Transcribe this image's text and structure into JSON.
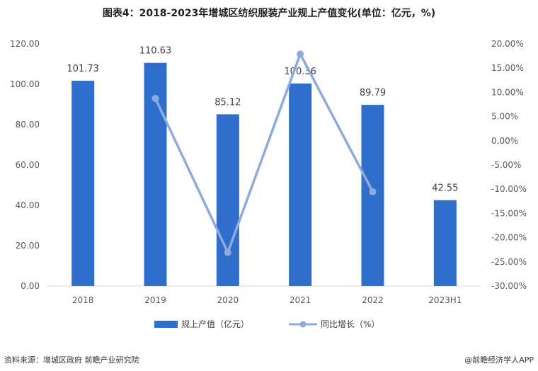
{
  "title": "图表4：2018-2023年增城区纺织服装产业规上产值变化(单位：亿元，%)",
  "source": "资料来源：增城区政府 前瞻产业研究院",
  "credit": "@前瞻经济学人APP",
  "colors": {
    "bar": "#2f6fcb",
    "line": "#8faadc",
    "text": "#595959"
  },
  "chart_data": {
    "type": "bar",
    "categories": [
      "2018",
      "2019",
      "2020",
      "2021",
      "2022",
      "2023H1"
    ],
    "series": [
      {
        "name": "规上产值（亿元）",
        "type": "bar",
        "axis": "left",
        "values": [
          101.73,
          110.63,
          85.12,
          100.36,
          89.79,
          42.55
        ],
        "labels": [
          "101.73",
          "110.63",
          "85.12",
          "100.36",
          "89.79",
          "42.55"
        ]
      },
      {
        "name": "同比增长（%）",
        "type": "line",
        "axis": "right",
        "values": [
          null,
          8.75,
          -23.06,
          17.9,
          -10.53,
          null
        ]
      }
    ],
    "y_left": {
      "min": 0,
      "max": 120,
      "step": 20,
      "ticks": [
        "0.00",
        "20.00",
        "40.00",
        "60.00",
        "80.00",
        "100.00",
        "120.00"
      ]
    },
    "y_right": {
      "min": -30,
      "max": 20,
      "step": 5,
      "ticks": [
        "-30.00%",
        "-25.00%",
        "-20.00%",
        "-15.00%",
        "-10.00%",
        "-5.00%",
        "0.00%",
        "5.00%",
        "10.00%",
        "15.00%",
        "20.00%"
      ]
    },
    "legend_position": "bottom"
  }
}
